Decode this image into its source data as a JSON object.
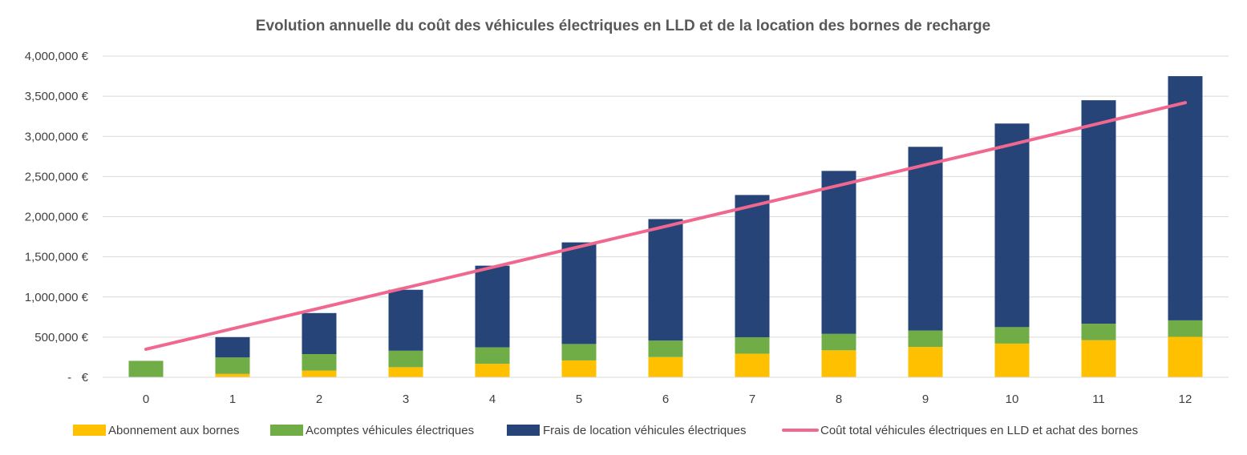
{
  "chart_data": {
    "type": "bar",
    "stacked": true,
    "title": "Evolution annuelle du coût des véhicules électriques en LLD et de la location des bornes de recharge",
    "xlabel": "",
    "ylabel": "",
    "categories": [
      "0",
      "1",
      "2",
      "3",
      "4",
      "5",
      "6",
      "7",
      "8",
      "9",
      "10",
      "11",
      "12"
    ],
    "y_ticks": [
      {
        "value": 0,
        "label": "-   €"
      },
      {
        "value": 500000,
        "label": "500,000 €"
      },
      {
        "value": 1000000,
        "label": "1,000,000 €"
      },
      {
        "value": 1500000,
        "label": "1,500,000 €"
      },
      {
        "value": 2000000,
        "label": "2,000,000 €"
      },
      {
        "value": 2500000,
        "label": "2,500,000 €"
      },
      {
        "value": 3000000,
        "label": "3,000,000 €"
      },
      {
        "value": 3500000,
        "label": "3,500,000 €"
      },
      {
        "value": 4000000,
        "label": "4,000,000 €"
      }
    ],
    "ylim": [
      0,
      4000000
    ],
    "grid": true,
    "legend_position": "bottom",
    "series": [
      {
        "name": "Abonnement aux bornes",
        "type": "bar",
        "color": "#FFC000",
        "values": [
          0,
          42000,
          84000,
          126000,
          168000,
          210000,
          252000,
          294000,
          336000,
          378000,
          420000,
          462000,
          504000
        ]
      },
      {
        "name": "Acomptes véhicules électriques",
        "type": "bar",
        "color": "#70AD47",
        "values": [
          205000,
          205000,
          205000,
          205000,
          205000,
          205000,
          205000,
          205000,
          205000,
          205000,
          205000,
          205000,
          205000
        ]
      },
      {
        "name": "Frais de location véhicules électriques",
        "type": "bar",
        "color": "#264478",
        "values": [
          0,
          253000,
          511000,
          759000,
          1017000,
          1265000,
          1513000,
          1771000,
          2029000,
          2287000,
          2535000,
          2783000,
          3041000
        ]
      },
      {
        "name": "Coût total véhicules électriques en LLD et achat des bornes",
        "type": "line",
        "color": "#F0688F",
        "values": [
          350000,
          605000,
          860000,
          1115000,
          1370000,
          1625000,
          1880000,
          2135000,
          2390000,
          2645000,
          2900000,
          3160000,
          3420000
        ]
      }
    ]
  }
}
